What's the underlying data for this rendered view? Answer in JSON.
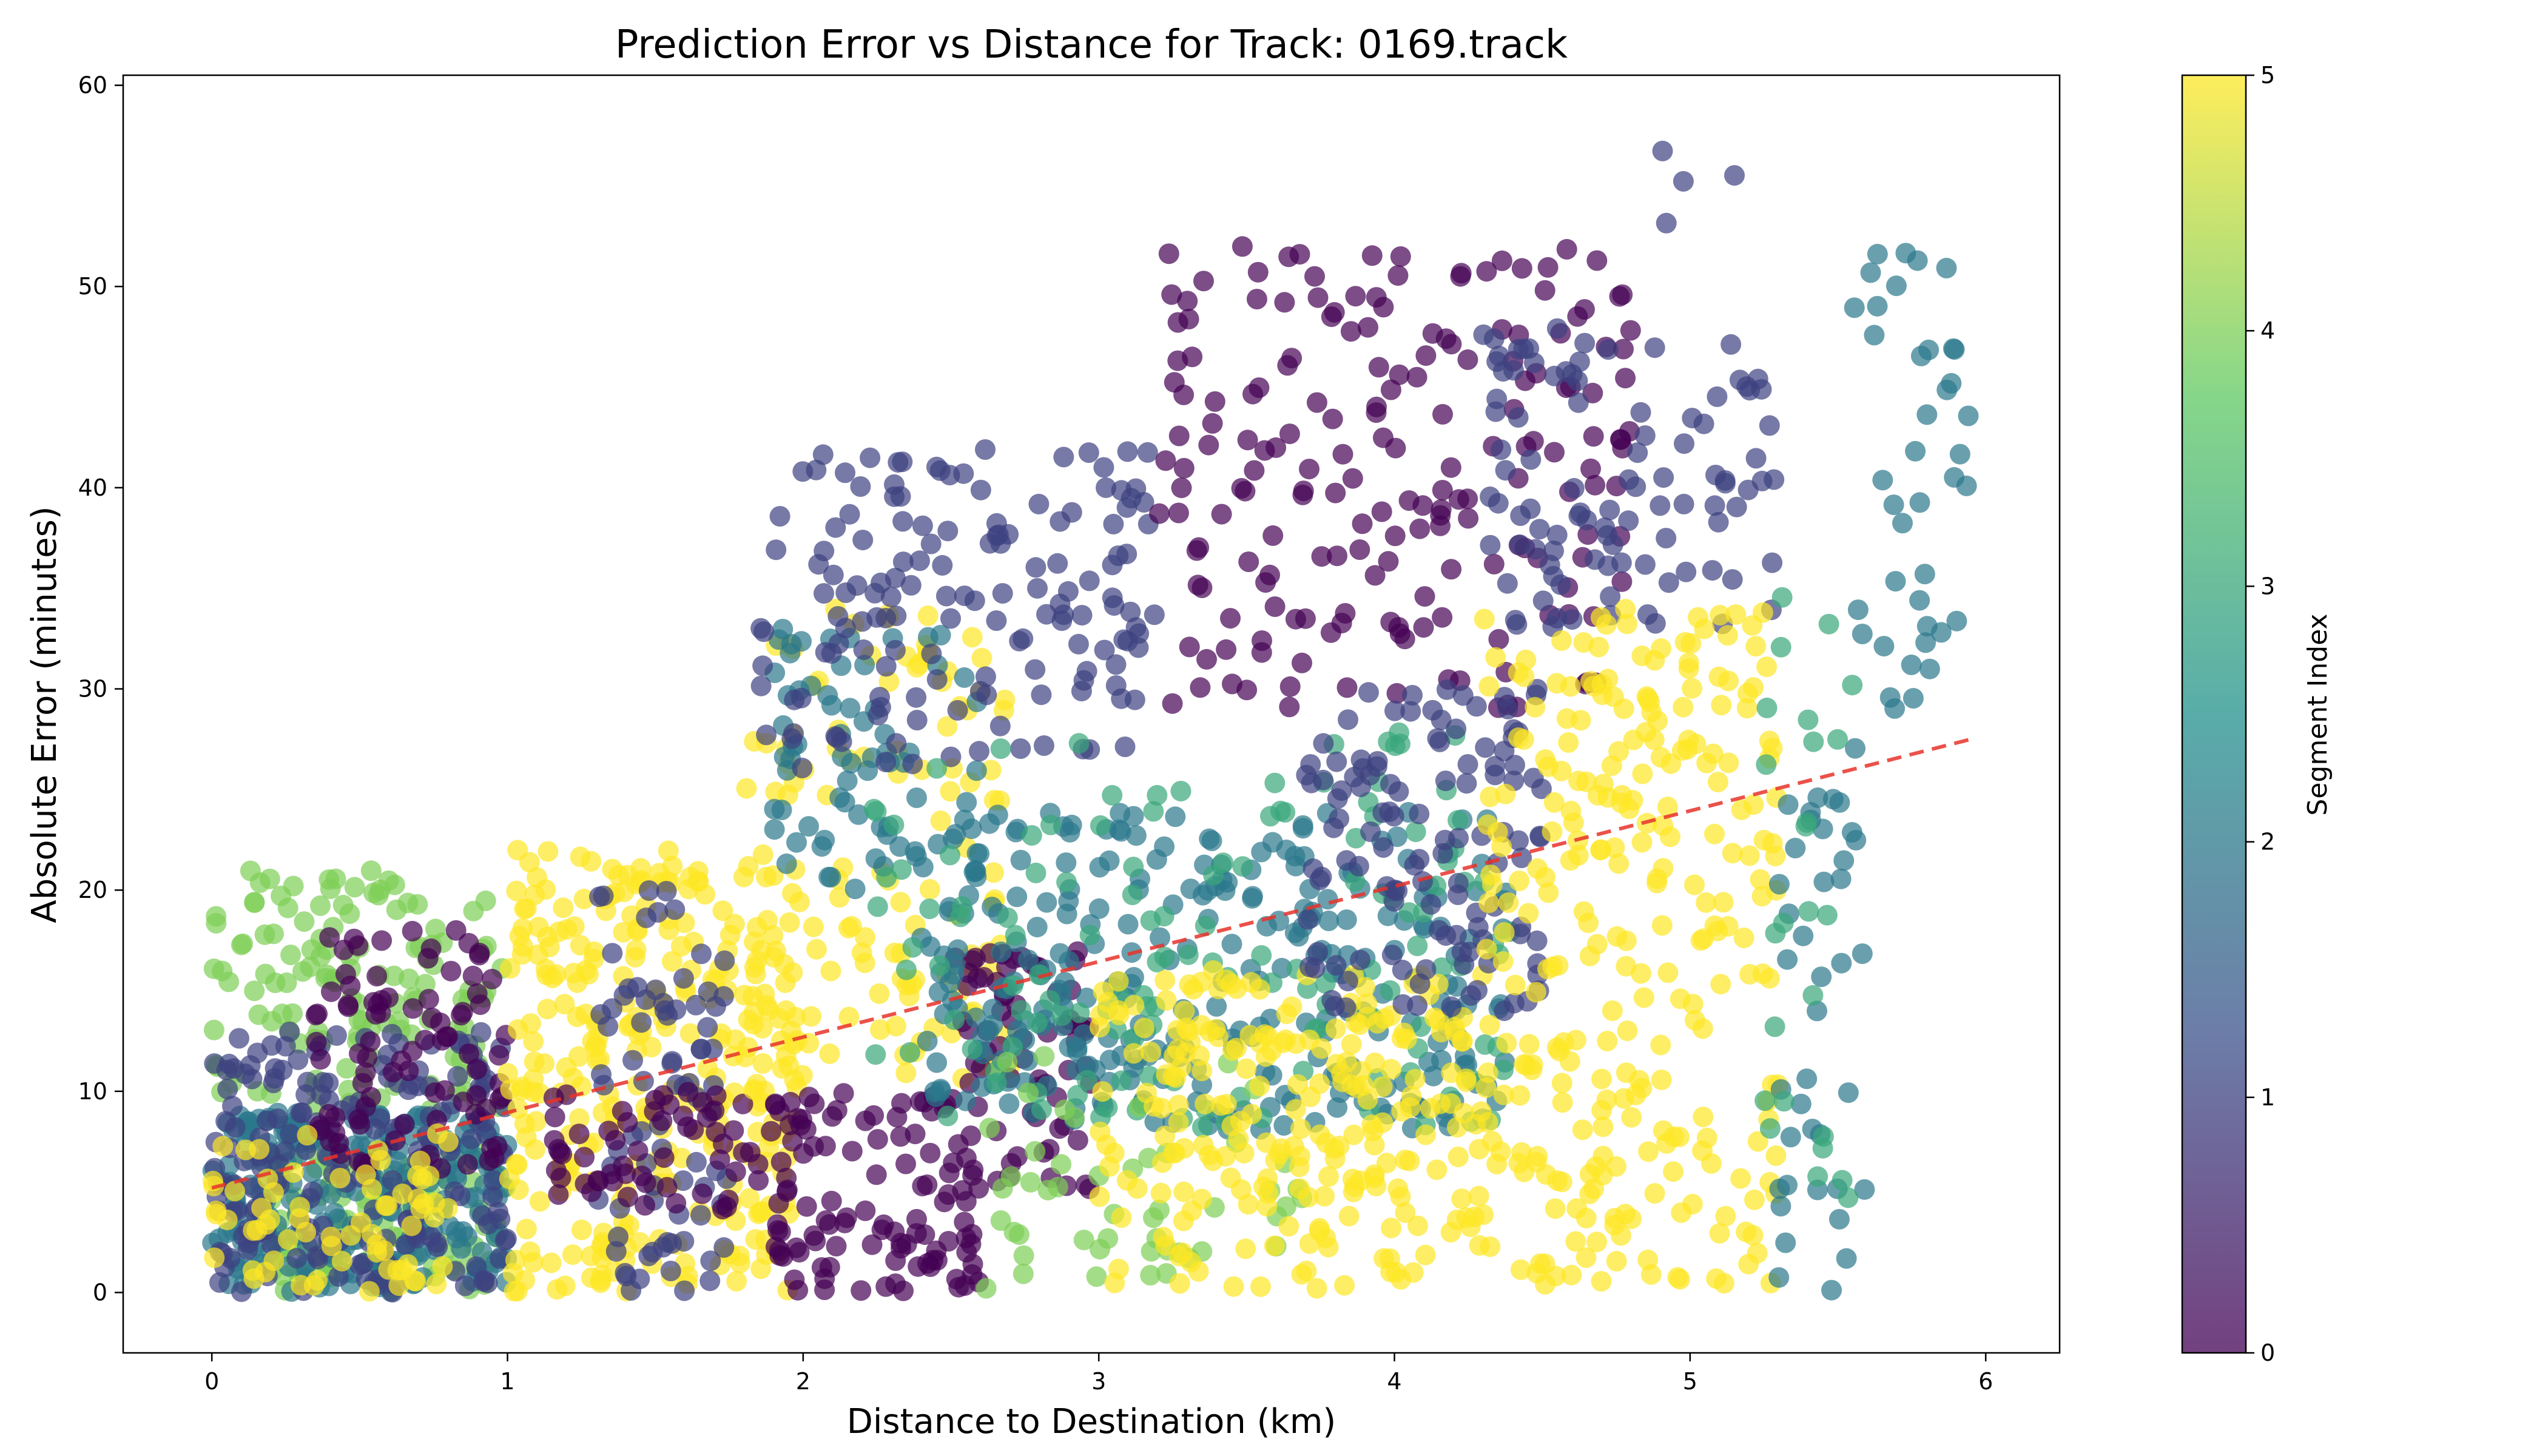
{
  "chart_data": {
    "type": "scatter",
    "title": "Prediction Error vs Distance for Track: 0169.track",
    "xlabel": "Distance to Destination (km)",
    "ylabel": "Absolute Error (minutes)",
    "xlim": [
      -0.3,
      6.25
    ],
    "ylim": [
      -3,
      60.5
    ],
    "x_ticks": [
      0,
      1,
      2,
      3,
      4,
      5,
      6
    ],
    "y_ticks": [
      0,
      10,
      20,
      30,
      40,
      50,
      60
    ],
    "grid": false,
    "point_opacity": 0.7,
    "colormap": "viridis",
    "colormap_stops": [
      "#440154",
      "#3b528b",
      "#21918c",
      "#5ec962",
      "#fde725"
    ],
    "colorbar": {
      "label": "Segment Index",
      "range": [
        0,
        5
      ],
      "ticks": [
        0,
        1,
        2,
        3,
        4,
        5
      ]
    },
    "trend_line": {
      "style": "dashed",
      "color": "#e8332a",
      "x": [
        0,
        5.95
      ],
      "y": [
        5.2,
        27.5
      ]
    },
    "clusters": [
      {
        "segment": 4,
        "x": [
          0.0,
          1.0
        ],
        "y": [
          9.0,
          21.0
        ],
        "count": 130
      },
      {
        "segment": 4,
        "x": [
          0.2,
          1.0
        ],
        "y": [
          0.0,
          7.0
        ],
        "count": 110
      },
      {
        "segment": 2,
        "x": [
          0.0,
          1.0
        ],
        "y": [
          0.0,
          9.0
        ],
        "count": 240
      },
      {
        "segment": 1,
        "x": [
          0.0,
          1.0
        ],
        "y": [
          0.0,
          13.0
        ],
        "count": 200
      },
      {
        "segment": 0,
        "x": [
          0.35,
          1.0
        ],
        "y": [
          6.0,
          18.0
        ],
        "count": 90
      },
      {
        "segment": 5,
        "x": [
          0.0,
          0.8
        ],
        "y": [
          0.0,
          8.0
        ],
        "count": 70
      },
      {
        "segment": 5,
        "x": [
          1.0,
          2.0
        ],
        "y": [
          0.0,
          22.0
        ],
        "count": 310
      },
      {
        "segment": 1,
        "x": [
          1.3,
          1.75
        ],
        "y": [
          0.0,
          20.0
        ],
        "count": 80
      },
      {
        "segment": 0,
        "x": [
          1.15,
          1.9
        ],
        "y": [
          4.0,
          10.0
        ],
        "count": 60
      },
      {
        "segment": 5,
        "x": [
          1.8,
          2.7
        ],
        "y": [
          10.0,
          34.0
        ],
        "count": 120
      },
      {
        "segment": 2,
        "x": [
          1.9,
          2.6
        ],
        "y": [
          20.0,
          33.0
        ],
        "count": 70
      },
      {
        "segment": 1,
        "x": [
          1.85,
          3.2
        ],
        "y": [
          26.0,
          42.0
        ],
        "count": 150
      },
      {
        "segment": 0,
        "x": [
          1.9,
          2.6
        ],
        "y": [
          0.0,
          10.0
        ],
        "count": 110
      },
      {
        "segment": 0,
        "x": [
          2.5,
          3.0
        ],
        "y": [
          5.0,
          17.0
        ],
        "count": 70
      },
      {
        "segment": 2,
        "x": [
          2.4,
          4.4
        ],
        "y": [
          8.0,
          24.0
        ],
        "count": 300
      },
      {
        "segment": 3,
        "x": [
          2.2,
          4.4
        ],
        "y": [
          8.0,
          28.0
        ],
        "count": 140
      },
      {
        "segment": 4,
        "x": [
          2.6,
          3.7
        ],
        "y": [
          0.0,
          12.0
        ],
        "count": 50
      },
      {
        "segment": 5,
        "x": [
          3.0,
          4.3
        ],
        "y": [
          0.0,
          16.0
        ],
        "count": 240
      },
      {
        "segment": 0,
        "x": [
          3.2,
          4.8
        ],
        "y": [
          29.0,
          52.0
        ],
        "count": 190
      },
      {
        "segment": 1,
        "x": [
          3.7,
          4.5
        ],
        "y": [
          14.0,
          30.0
        ],
        "count": 120
      },
      {
        "segment": 1,
        "x": [
          4.3,
          5.3
        ],
        "y": [
          33.0,
          48.0
        ],
        "count": 100
      },
      {
        "segment": 1,
        "x": [
          4.9,
          5.2
        ],
        "y": [
          53.0,
          58.0
        ],
        "count": 4
      },
      {
        "segment": 5,
        "x": [
          4.3,
          5.3
        ],
        "y": [
          0.0,
          34.0
        ],
        "count": 280
      },
      {
        "segment": 2,
        "x": [
          5.3,
          5.6
        ],
        "y": [
          0.0,
          28.0
        ],
        "count": 40
      },
      {
        "segment": 3,
        "x": [
          5.25,
          5.55
        ],
        "y": [
          4.0,
          36.0
        ],
        "count": 25
      },
      {
        "segment": 2,
        "x": [
          5.55,
          5.95
        ],
        "y": [
          29.0,
          52.0
        ],
        "count": 40
      }
    ]
  }
}
